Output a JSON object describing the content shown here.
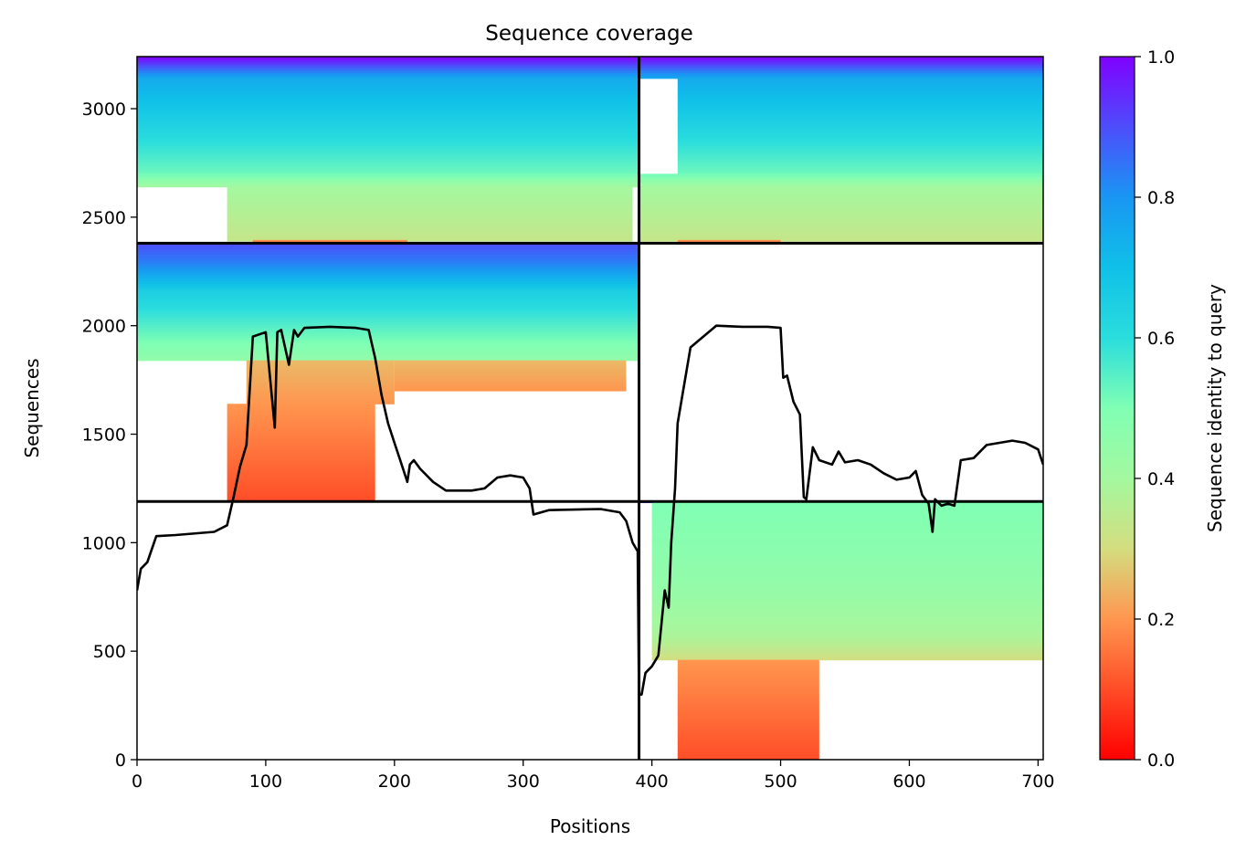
{
  "chart_data": {
    "type": "heatmap",
    "title": "Sequence coverage",
    "xlabel": "Positions",
    "ylabel": "Sequences",
    "xlim": [
      0,
      704
    ],
    "ylim": [
      0,
      3240
    ],
    "x_ticks": [
      0,
      100,
      200,
      300,
      400,
      500,
      600,
      700
    ],
    "y_ticks": [
      0,
      500,
      1000,
      1500,
      2000,
      2500,
      3000
    ],
    "grid": false,
    "divider_lines": {
      "x": [
        390
      ],
      "y": [
        1190,
        2380
      ]
    },
    "colorbar": {
      "label": "Sequence identity to query",
      "colormap": "rainbow_r",
      "range": [
        0,
        1
      ],
      "ticks": [
        0.0,
        0.2,
        0.4,
        0.6,
        0.8,
        1.0
      ],
      "stops": [
        {
          "value": 0.0,
          "color": "#ff0000"
        },
        {
          "value": 0.1,
          "color": "#ff4d27"
        },
        {
          "value": 0.2,
          "color": "#ff964f"
        },
        {
          "value": 0.3,
          "color": "#d4dd80"
        },
        {
          "value": 0.4,
          "color": "#a4f89f"
        },
        {
          "value": 0.5,
          "color": "#80ffb4"
        },
        {
          "value": 0.6,
          "color": "#2adddd"
        },
        {
          "value": 0.7,
          "color": "#10c0e8"
        },
        {
          "value": 0.8,
          "color": "#1996f3"
        },
        {
          "value": 0.9,
          "color": "#4d4dfb"
        },
        {
          "value": 1.0,
          "color": "#8000ff"
        }
      ]
    },
    "blocks": [
      {
        "name": "block-top-left",
        "x": [
          0,
          390
        ],
        "coverage": [
          {
            "y": [
              3140,
              3240
            ],
            "x": [
              0,
              390
            ],
            "identity_from": 0.75,
            "identity_to": 1.0
          },
          {
            "y": [
              2700,
              3140
            ],
            "x": [
              0,
              390
            ],
            "identity_from": 0.52,
            "identity_to": 0.75
          },
          {
            "y": [
              2640,
              2700
            ],
            "x": [
              0,
              390
            ],
            "identity_from": 0.4,
            "identity_to": 0.52
          },
          {
            "y": [
              2390,
              2640
            ],
            "x": [
              70,
              385
            ],
            "identity_from": 0.33,
            "identity_to": 0.4
          },
          {
            "y": [
              2380,
              2395
            ],
            "x": [
              90,
              210
            ],
            "identity_from": 0.15,
            "identity_to": 0.2
          }
        ]
      },
      {
        "name": "block-top-right",
        "x": [
          390,
          704
        ],
        "coverage": [
          {
            "y": [
              3140,
              3240
            ],
            "x": [
              390,
              704
            ],
            "identity_from": 0.75,
            "identity_to": 1.0
          },
          {
            "y": [
              2700,
              3140
            ],
            "x": [
              420,
              704
            ],
            "identity_from": 0.52,
            "identity_to": 0.75
          },
          {
            "y": [
              2640,
              2700
            ],
            "x": [
              390,
              704
            ],
            "identity_from": 0.4,
            "identity_to": 0.52
          },
          {
            "y": [
              2390,
              2640
            ],
            "x": [
              390,
              704
            ],
            "identity_from": 0.33,
            "identity_to": 0.4
          },
          {
            "y": [
              2380,
              2395
            ],
            "x": [
              420,
              500
            ],
            "identity_from": 0.15,
            "identity_to": 0.2
          }
        ]
      },
      {
        "name": "block-middle-left",
        "x": [
          0,
          390
        ],
        "coverage": [
          {
            "y": [
              2280,
              2380
            ],
            "x": [
              0,
              390
            ],
            "identity_from": 0.82,
            "identity_to": 0.9
          },
          {
            "y": [
              2160,
              2280
            ],
            "x": [
              0,
              390
            ],
            "identity_from": 0.65,
            "identity_to": 0.82
          },
          {
            "y": [
              1840,
              2160
            ],
            "x": [
              0,
              390
            ],
            "identity_from": 0.45,
            "identity_to": 0.65
          },
          {
            "y": [
              1700,
              1840
            ],
            "x": [
              200,
              380
            ],
            "identity_from": 0.2,
            "identity_to": 0.25
          },
          {
            "y": [
              1640,
              1840
            ],
            "x": [
              85,
              200
            ],
            "identity_from": 0.2,
            "identity_to": 0.25
          },
          {
            "y": [
              1190,
              1640
            ],
            "x": [
              70,
              185
            ],
            "identity_from": 0.1,
            "identity_to": 0.2
          }
        ]
      },
      {
        "name": "block-bottom-right",
        "x": [
          390,
          704
        ],
        "coverage": [
          {
            "y": [
              1185,
              1195
            ],
            "x": [
              390,
              704
            ],
            "identity_from": 0.9,
            "identity_to": 1.0
          },
          {
            "y": [
              820,
              1185
            ],
            "x": [
              400,
              704
            ],
            "identity_from": 0.45,
            "identity_to": 0.5
          },
          {
            "y": [
              560,
              820
            ],
            "x": [
              400,
              704
            ],
            "identity_from": 0.38,
            "identity_to": 0.45
          },
          {
            "y": [
              460,
              560
            ],
            "x": [
              400,
              704
            ],
            "identity_from": 0.3,
            "identity_to": 0.38
          },
          {
            "y": [
              0,
              460
            ],
            "x": [
              420,
              530
            ],
            "identity_from": 0.1,
            "identity_to": 0.2
          }
        ]
      }
    ],
    "coverage_line": {
      "name": "coverage",
      "color": "#000000",
      "x": [
        0,
        3,
        8,
        15,
        30,
        60,
        70,
        75,
        80,
        85,
        90,
        100,
        107,
        109,
        112,
        118,
        122,
        125,
        130,
        150,
        170,
        180,
        185,
        190,
        195,
        200,
        205,
        210,
        212,
        215,
        220,
        230,
        240,
        250,
        260,
        270,
        280,
        290,
        300,
        305,
        308,
        320,
        360,
        375,
        380,
        385,
        389,
        390,
        392,
        395,
        400,
        405,
        410,
        413,
        415,
        418,
        420,
        430,
        450,
        470,
        490,
        500,
        502,
        505,
        510,
        515,
        518,
        520,
        525,
        530,
        540,
        545,
        550,
        560,
        570,
        580,
        590,
        600,
        605,
        610,
        615,
        618,
        620,
        625,
        630,
        635,
        640,
        650,
        660,
        670,
        680,
        690,
        700,
        704
      ],
      "y": [
        780,
        880,
        910,
        1030,
        1035,
        1050,
        1080,
        1210,
        1350,
        1450,
        1950,
        1970,
        1530,
        1970,
        1980,
        1820,
        1980,
        1950,
        1990,
        1995,
        1990,
        1980,
        1850,
        1680,
        1550,
        1460,
        1370,
        1280,
        1360,
        1380,
        1340,
        1280,
        1240,
        1240,
        1240,
        1250,
        1300,
        1310,
        1300,
        1250,
        1130,
        1150,
        1155,
        1140,
        1100,
        1000,
        960,
        300,
        300,
        400,
        430,
        480,
        780,
        700,
        1000,
        1250,
        1550,
        1900,
        2000,
        1995,
        1995,
        1990,
        1760,
        1770,
        1650,
        1590,
        1210,
        1200,
        1440,
        1380,
        1360,
        1420,
        1370,
        1380,
        1360,
        1320,
        1290,
        1300,
        1330,
        1220,
        1180,
        1050,
        1200,
        1170,
        1180,
        1170,
        1380,
        1390,
        1450,
        1460,
        1470,
        1460,
        1430,
        1360
      ]
    }
  }
}
